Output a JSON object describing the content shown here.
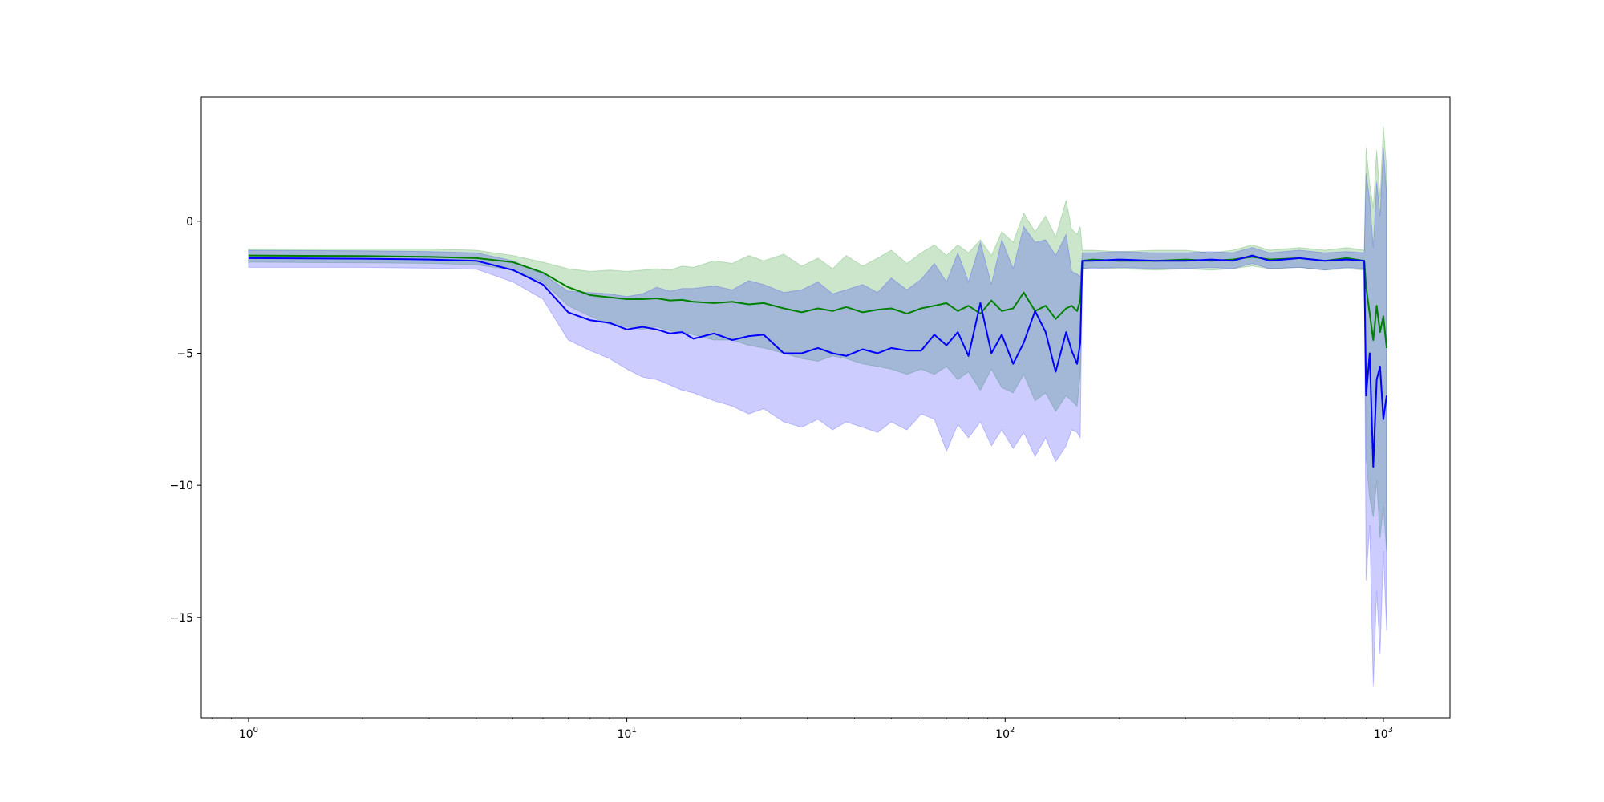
{
  "chart_data": {
    "type": "line",
    "xscale": "log",
    "xlim": [
      0.75,
      1500
    ],
    "ylim": [
      -18.8,
      4.7
    ],
    "xticks": [
      {
        "value": 1,
        "base": "10",
        "exp": "0"
      },
      {
        "value": 10,
        "base": "10",
        "exp": "1"
      },
      {
        "value": 100,
        "base": "10",
        "exp": "2"
      },
      {
        "value": 1000,
        "base": "10",
        "exp": "3"
      }
    ],
    "yticks": [
      {
        "value": 0,
        "label": "0"
      },
      {
        "value": -5,
        "label": "−5"
      },
      {
        "value": -10,
        "label": "−10"
      },
      {
        "value": -15,
        "label": "−15"
      }
    ],
    "grid": false,
    "legend": "none",
    "series": [
      {
        "color": "#008000",
        "band_color": "#008000",
        "band_opacity": 0.2,
        "x": [
          1,
          2,
          3,
          4,
          5,
          6,
          7,
          8,
          9,
          10,
          11,
          12,
          13,
          14,
          15,
          17,
          19,
          21,
          23,
          26,
          29,
          32,
          35,
          38,
          42,
          46,
          50,
          55,
          60,
          65,
          70,
          75,
          80,
          86,
          92,
          98,
          105,
          112,
          120,
          128,
          136,
          145,
          150,
          155,
          158,
          160,
          170,
          200,
          250,
          300,
          350,
          400,
          450,
          500,
          600,
          700,
          800,
          890,
          900,
          920,
          940,
          960,
          980,
          1000,
          1020
        ],
        "mean": [
          -1.3,
          -1.32,
          -1.35,
          -1.4,
          -1.55,
          -1.95,
          -2.5,
          -2.8,
          -2.88,
          -2.95,
          -2.95,
          -2.92,
          -3.0,
          -2.98,
          -3.05,
          -3.1,
          -3.05,
          -3.15,
          -3.1,
          -3.3,
          -3.45,
          -3.3,
          -3.4,
          -3.25,
          -3.45,
          -3.35,
          -3.3,
          -3.5,
          -3.3,
          -3.2,
          -3.1,
          -3.4,
          -3.2,
          -3.5,
          -3.0,
          -3.4,
          -3.3,
          -2.7,
          -3.4,
          -3.2,
          -3.7,
          -3.3,
          -3.2,
          -3.4,
          -3.0,
          -1.5,
          -1.45,
          -1.5,
          -1.5,
          -1.45,
          -1.5,
          -1.45,
          -1.35,
          -1.45,
          -1.4,
          -1.5,
          -1.4,
          -1.5,
          -2.5,
          -3.5,
          -4.5,
          -3.2,
          -4.2,
          -3.6,
          -4.8
        ],
        "upper": [
          -1.05,
          -1.05,
          -1.05,
          -1.1,
          -1.3,
          -1.55,
          -1.8,
          -1.9,
          -1.85,
          -1.9,
          -1.85,
          -1.8,
          -1.85,
          -1.7,
          -1.75,
          -1.5,
          -1.6,
          -1.3,
          -1.5,
          -1.25,
          -1.7,
          -1.4,
          -1.8,
          -1.3,
          -1.7,
          -1.4,
          -1.1,
          -1.6,
          -1.2,
          -0.9,
          -1.3,
          -0.9,
          -1.2,
          -0.7,
          -1.3,
          -0.4,
          -0.8,
          0.3,
          -0.4,
          0.2,
          -0.6,
          0.8,
          -0.3,
          -0.5,
          -0.2,
          -1.1,
          -1.1,
          -1.15,
          -1.1,
          -1.1,
          -1.2,
          -1.1,
          -0.9,
          -1.1,
          -1.0,
          -1.1,
          -1.0,
          -1.1,
          2.8,
          1.4,
          0.5,
          2.7,
          0.9,
          3.6,
          2.0
        ],
        "lower": [
          -1.55,
          -1.58,
          -1.6,
          -1.65,
          -1.85,
          -2.3,
          -3.2,
          -3.6,
          -3.9,
          -4.0,
          -4.1,
          -4.0,
          -4.15,
          -4.2,
          -4.3,
          -4.5,
          -4.5,
          -4.7,
          -4.8,
          -5.0,
          -5.2,
          -5.3,
          -5.1,
          -5.2,
          -5.4,
          -5.5,
          -5.6,
          -5.8,
          -5.6,
          -5.8,
          -5.5,
          -6.0,
          -5.7,
          -6.4,
          -5.6,
          -6.3,
          -6.5,
          -5.8,
          -6.8,
          -6.5,
          -7.2,
          -6.6,
          -6.8,
          -7.0,
          -5.8,
          -1.8,
          -1.75,
          -1.8,
          -1.85,
          -1.8,
          -1.85,
          -1.8,
          -1.7,
          -1.8,
          -1.75,
          -1.85,
          -1.8,
          -1.85,
          -9.0,
          -10.5,
          -11.2,
          -9.8,
          -12.0,
          -10.8,
          -12.5
        ]
      },
      {
        "color": "#0000ff",
        "band_color": "#0000ff",
        "band_opacity": 0.2,
        "x": [
          1,
          2,
          3,
          4,
          5,
          6,
          7,
          8,
          9,
          10,
          11,
          12,
          13,
          14,
          15,
          17,
          19,
          21,
          23,
          26,
          29,
          32,
          35,
          38,
          42,
          46,
          50,
          55,
          60,
          65,
          70,
          75,
          80,
          86,
          92,
          98,
          105,
          112,
          120,
          128,
          136,
          145,
          150,
          155,
          158,
          160,
          170,
          200,
          250,
          300,
          350,
          400,
          450,
          500,
          600,
          700,
          800,
          890,
          900,
          920,
          940,
          960,
          980,
          1000,
          1020
        ],
        "mean": [
          -1.4,
          -1.42,
          -1.45,
          -1.5,
          -1.85,
          -2.4,
          -3.45,
          -3.75,
          -3.85,
          -4.1,
          -4.0,
          -4.1,
          -4.25,
          -4.2,
          -4.45,
          -4.25,
          -4.5,
          -4.35,
          -4.3,
          -5.0,
          -5.0,
          -4.8,
          -5.0,
          -5.1,
          -4.85,
          -5.0,
          -4.8,
          -4.9,
          -4.9,
          -4.3,
          -4.7,
          -4.2,
          -5.1,
          -3.1,
          -5.0,
          -4.3,
          -5.4,
          -4.6,
          -3.4,
          -4.2,
          -5.7,
          -4.2,
          -4.9,
          -5.4,
          -4.6,
          -1.5,
          -1.5,
          -1.45,
          -1.5,
          -1.5,
          -1.45,
          -1.5,
          -1.3,
          -1.5,
          -1.4,
          -1.5,
          -1.45,
          -1.5,
          -6.6,
          -5.0,
          -9.3,
          -6.0,
          -5.5,
          -7.5,
          -6.6
        ],
        "upper": [
          -1.1,
          -1.12,
          -1.15,
          -1.2,
          -1.5,
          -2.0,
          -2.65,
          -2.7,
          -2.75,
          -2.85,
          -2.75,
          -2.5,
          -2.65,
          -2.55,
          -2.55,
          -2.45,
          -2.6,
          -2.25,
          -2.4,
          -2.7,
          -2.6,
          -2.3,
          -2.75,
          -2.6,
          -2.4,
          -2.7,
          -2.15,
          -2.6,
          -2.2,
          -1.6,
          -2.3,
          -1.2,
          -2.3,
          -0.8,
          -2.4,
          -0.7,
          -1.8,
          -0.2,
          -0.8,
          -0.7,
          -1.3,
          -0.5,
          -1.9,
          -2.0,
          -2.1,
          -1.2,
          -1.2,
          -1.15,
          -1.2,
          -1.2,
          -1.15,
          -1.2,
          -1.0,
          -1.2,
          -1.1,
          -1.2,
          -1.15,
          -1.2,
          1.8,
          0.8,
          -1.0,
          1.5,
          0.2,
          2.8,
          1.0
        ],
        "lower": [
          -1.75,
          -1.75,
          -1.78,
          -1.82,
          -2.3,
          -2.95,
          -4.5,
          -4.9,
          -5.2,
          -5.6,
          -5.9,
          -6.0,
          -6.2,
          -6.4,
          -6.5,
          -6.8,
          -7.0,
          -7.3,
          -7.1,
          -7.6,
          -7.8,
          -7.5,
          -7.9,
          -7.6,
          -7.8,
          -8.0,
          -7.6,
          -7.9,
          -7.3,
          -7.5,
          -8.7,
          -7.7,
          -8.2,
          -7.6,
          -8.5,
          -7.9,
          -8.6,
          -8.0,
          -8.9,
          -8.2,
          -9.1,
          -8.5,
          -7.9,
          -8.0,
          -8.2,
          -1.8,
          -1.8,
          -1.75,
          -1.8,
          -1.8,
          -1.75,
          -1.8,
          -1.6,
          -1.8,
          -1.75,
          -1.85,
          -1.75,
          -1.8,
          -13.6,
          -11.5,
          -17.6,
          -14.0,
          -16.4,
          -12.5,
          -15.5
        ]
      }
    ]
  }
}
